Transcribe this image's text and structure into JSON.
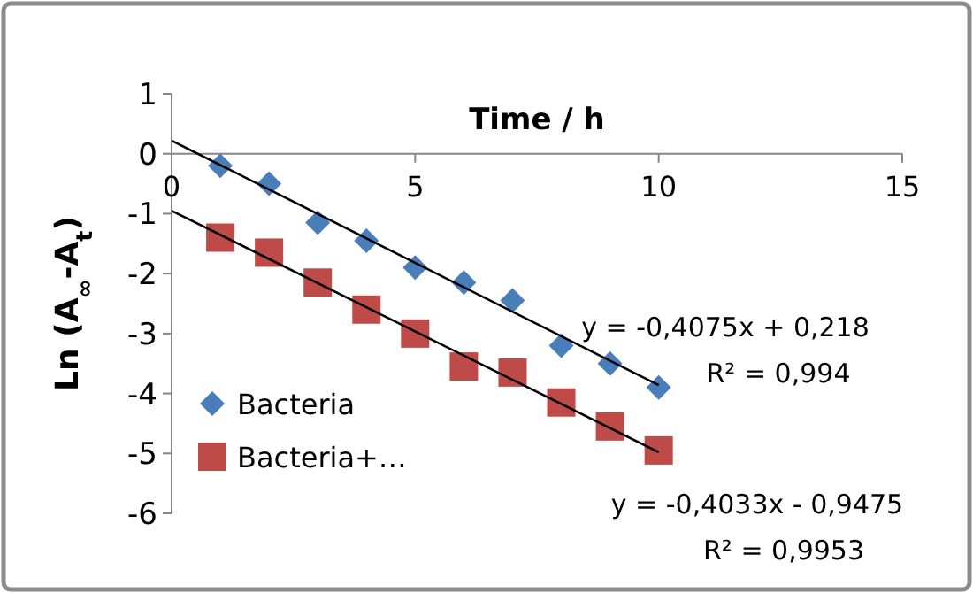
{
  "chart_data": {
    "type": "scatter",
    "xlabel": "Time / h",
    "ylabel": "Ln (A$_{∞}$-A$_{t}$)",
    "xlim": [
      0,
      15
    ],
    "xticks": [
      0,
      5,
      10,
      15
    ],
    "ylim": [
      -6,
      1
    ],
    "yticks": [
      -6,
      -5,
      -4,
      -3,
      -2,
      -1,
      0,
      1
    ],
    "grid": false,
    "legend": "left",
    "series": [
      {
        "name": "Bacteria",
        "marker": "diamond",
        "color": "#4a7ebb",
        "x": [
          1,
          2,
          3,
          4,
          5,
          6,
          7,
          8,
          9,
          10
        ],
        "values": [
          -0.2,
          -0.5,
          -1.15,
          -1.45,
          -1.9,
          -2.15,
          -2.45,
          -3.2,
          -3.5,
          -3.9
        ]
      },
      {
        "name": "Bacteria+…",
        "marker": "square",
        "color": "#be4b48",
        "x": [
          1,
          2,
          3,
          4,
          5,
          6,
          7,
          8,
          9,
          10
        ],
        "values": [
          -1.4,
          -1.65,
          -2.15,
          -2.6,
          -3.0,
          -3.55,
          -3.65,
          -4.15,
          -4.55,
          -4.95
        ]
      },
      {
        "type": "line",
        "color": "#000000",
        "x": [
          0,
          10
        ],
        "values": [
          0.22,
          -3.86
        ]
      },
      {
        "type": "line",
        "color": "#000000",
        "x": [
          0,
          10
        ],
        "values": [
          -0.95,
          -4.98
        ]
      }
    ],
    "annotations": [
      "y = -0,4075x + 0,218",
      "R² = 0,994",
      "y = -0,4033x - 0,9475",
      "R² = 0,9953"
    ]
  }
}
